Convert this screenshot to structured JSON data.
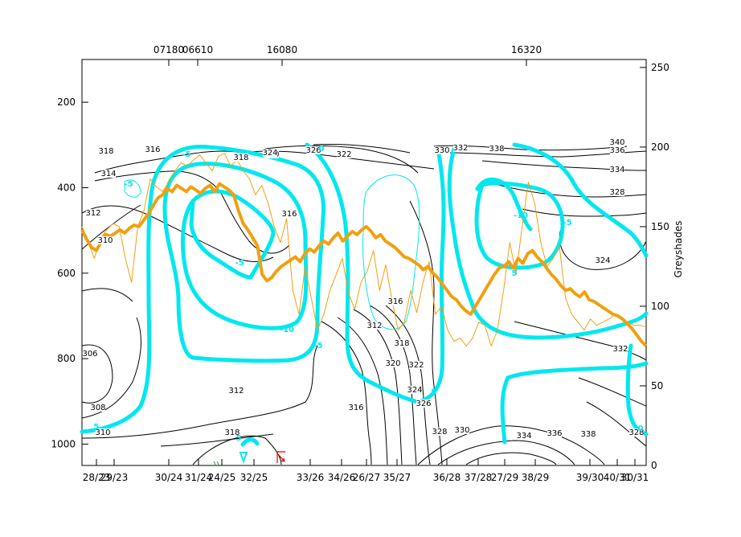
{
  "chart_data": {
    "type": "line",
    "title": "",
    "xlabel": "",
    "ylabel": "",
    "right_axis_label": "Greyshades",
    "left_axis": {
      "range": [
        100,
        1050
      ],
      "inverted": true,
      "ticks": [
        200,
        400,
        600,
        800,
        1000
      ]
    },
    "right_axis": {
      "range": [
        0,
        255
      ],
      "ticks": [
        0,
        50,
        100,
        150,
        200,
        250
      ]
    },
    "x_tick_labels": [
      "28/23",
      "29/23",
      "30/24",
      "31/24",
      "24/25",
      "32/25",
      "33/26",
      "34/26",
      "26/27",
      "35/27",
      "36/28",
      "37/28",
      "27/29",
      "38/29",
      "39/30",
      "40/31",
      "30/31"
    ],
    "top_labels": [
      "07180",
      "06610",
      "16080",
      "16320"
    ],
    "theta_contour_labels": [
      "306",
      "308",
      "310",
      "310",
      "312",
      "312",
      "314",
      "316",
      "316",
      "318",
      "318",
      "320",
      "322",
      "324",
      "324",
      "326",
      "328",
      "330",
      "332",
      "334",
      "336",
      "338",
      "340",
      "316",
      "318",
      "320",
      "322",
      "324",
      "326",
      "328",
      "330",
      "334",
      "336",
      "338",
      "332",
      "328",
      "318",
      "312",
      "316"
    ],
    "cyan_contour_labels": [
      "-5",
      "-5",
      "-5",
      "-10",
      "-5",
      "0",
      "5",
      "5",
      "-10",
      "-5",
      "0",
      "5",
      "0"
    ],
    "series": [
      {
        "values_right_axis": [
          148,
          142,
          137,
          135,
          140,
          145,
          144,
          146,
          148,
          146,
          149,
          151,
          150,
          154,
          158,
          163,
          168,
          170,
          174,
          172,
          176,
          174,
          172,
          175,
          173,
          171,
          174,
          176,
          172,
          177,
          175,
          173,
          170,
          160,
          152,
          148,
          143,
          138,
          120,
          116,
          118,
          122,
          125,
          127,
          129,
          131,
          128,
          133,
          136,
          134,
          138,
          141,
          139,
          143,
          146,
          141,
          144,
          147,
          145,
          148,
          150,
          147,
          143,
          145,
          141,
          139,
          137,
          134,
          131,
          130,
          128,
          126,
          123,
          125,
          121,
          118,
          114,
          110,
          106,
          104,
          100,
          97,
          95,
          100,
          105,
          110,
          115,
          120,
          124,
          125,
          128,
          124,
          130,
          127,
          133,
          135,
          131,
          128,
          124,
          120,
          117,
          113,
          110,
          111,
          108,
          106,
          109,
          104,
          103,
          101,
          99,
          97,
          95,
          94,
          92,
          89,
          86,
          82,
          78,
          75
        ]
      },
      {
        "values_right_axis": [
          150,
          140,
          130,
          143,
          148,
          152,
          150,
          130,
          115,
          150,
          160,
          180,
          175,
          172,
          178,
          185,
          190,
          188,
          192,
          195,
          190,
          185,
          194,
          196,
          188,
          192,
          185,
          180,
          170,
          176,
          165,
          150,
          140,
          155,
          110,
          95,
          125,
          105,
          85,
          95,
          110,
          120,
          130,
          108,
          98,
          115,
          122,
          135,
          110,
          126,
          104,
          85,
          90,
          110,
          96,
          115,
          128,
          95,
          100,
          85,
          78,
          80,
          75,
          80,
          90,
          88,
          75,
          85,
          110,
          140,
          120,
          150,
          178,
          165,
          140,
          125,
          130,
          138,
          105,
          95,
          90,
          85,
          92,
          88,
          90,
          92,
          95,
          92,
          90,
          88,
          88,
          87
        ]
      }
    ]
  }
}
